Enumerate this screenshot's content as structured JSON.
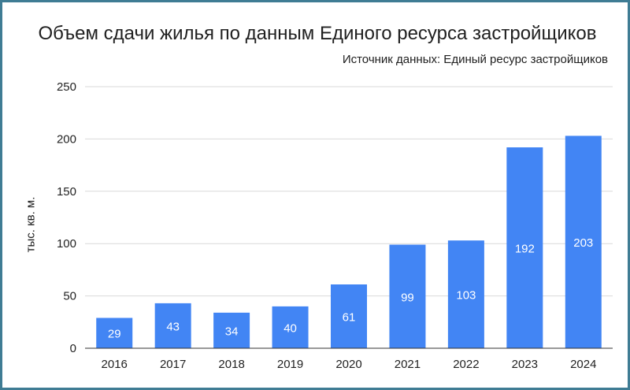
{
  "chart_data": {
    "type": "bar",
    "title": "Объем сдачи жилья по данным Единого ресурса застройщиков",
    "subtitle": "Источник данных: Единый ресурс застройщиков",
    "xlabel": "",
    "ylabel": "тыс. кв. м.",
    "categories": [
      "2016",
      "2017",
      "2018",
      "2019",
      "2020",
      "2021",
      "2022",
      "2023",
      "2024"
    ],
    "values": [
      29,
      43,
      34,
      40,
      61,
      99,
      103,
      192,
      203
    ],
    "data_labels": [
      "29",
      "43",
      "34",
      "40",
      "61",
      "99",
      "103",
      "192",
      "203"
    ],
    "ylim": [
      0,
      250
    ],
    "yticks": [
      0,
      50,
      100,
      150,
      200,
      250
    ],
    "grid": true,
    "legend": "none",
    "colors": {
      "bar": "#4285f4",
      "grid": "#d9d9d9",
      "axis": "#333333",
      "frame": "#3f7c94"
    }
  }
}
